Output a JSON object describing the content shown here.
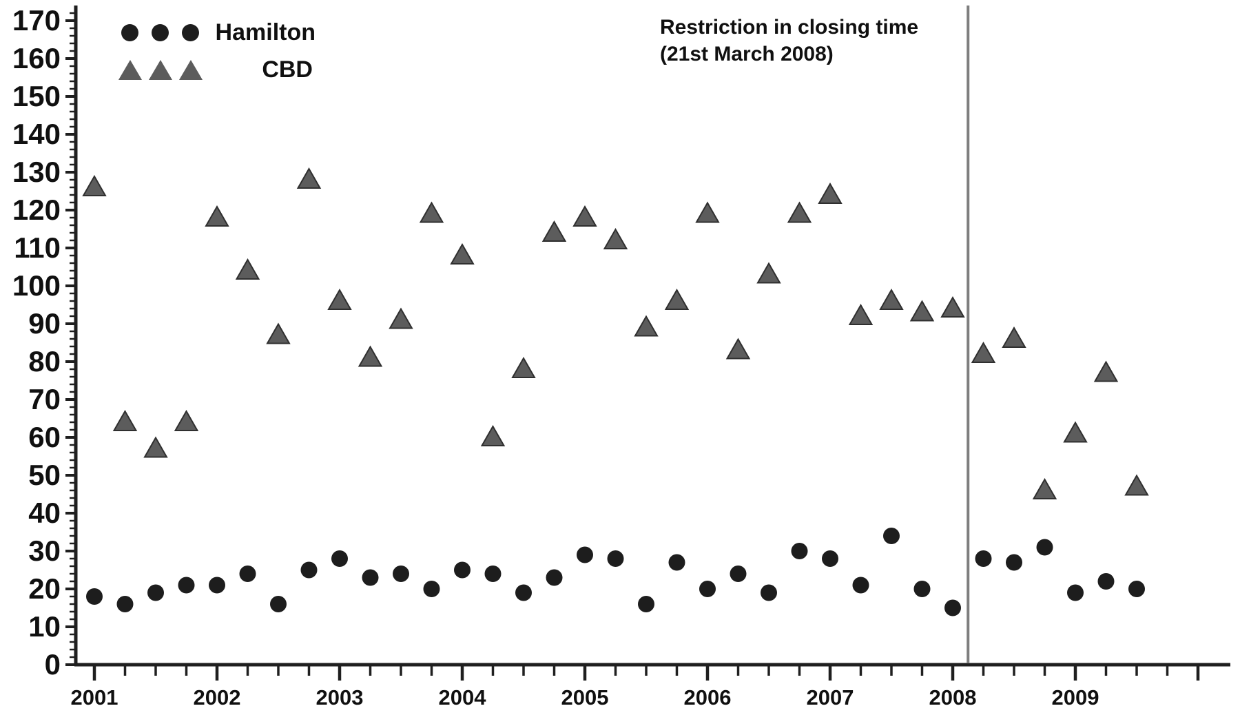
{
  "chart_data": {
    "type": "scatter",
    "title": "",
    "xlabel": "",
    "ylabel": "",
    "x_axis": {
      "year_labels": [
        2001,
        2002,
        2003,
        2004,
        2005,
        2006,
        2007,
        2008,
        2009
      ],
      "minor_tick_interval_years": 0.25,
      "tick_end": 2010.0
    },
    "y_axis": {
      "min": 0,
      "max": 170,
      "major_tick_step": 10,
      "minor_tick_step": 2,
      "tick_labels": [
        0,
        10,
        20,
        30,
        40,
        50,
        60,
        70,
        80,
        90,
        100,
        110,
        120,
        130,
        140,
        150,
        160,
        170
      ]
    },
    "grid": false,
    "legend_position": "top-left",
    "x": [
      2001,
      2001.25,
      2001.5,
      2001.75,
      2002,
      2002.25,
      2002.5,
      2002.75,
      2003,
      2003.25,
      2003.5,
      2003.75,
      2004,
      2004.25,
      2004.5,
      2004.75,
      2005,
      2005.25,
      2005.5,
      2005.75,
      2006,
      2006.25,
      2006.5,
      2006.75,
      2007,
      2007.25,
      2007.5,
      2007.75,
      2008,
      2008.25,
      2008.5,
      2008.75,
      2009,
      2009.25,
      2009.5
    ],
    "series": [
      {
        "name": "Hamilton",
        "marker": "circle",
        "color": "#1d1d1d",
        "values": [
          18,
          16,
          19,
          21,
          21,
          24,
          16,
          25,
          28,
          23,
          24,
          20,
          25,
          24,
          19,
          23,
          29,
          28,
          16,
          27,
          20,
          24,
          19,
          30,
          28,
          21,
          34,
          20,
          15,
          28,
          27,
          31,
          19,
          22,
          20
        ]
      },
      {
        "name": "CBD",
        "marker": "triangle",
        "color": "#5c5c5c",
        "stroke": "#2f2f2f",
        "values": [
          126,
          64,
          57,
          64,
          118,
          104,
          87,
          128,
          96,
          81,
          91,
          119,
          108,
          60,
          78,
          114,
          118,
          112,
          89,
          96,
          119,
          83,
          103,
          119,
          124,
          92,
          96,
          93,
          94,
          82,
          86,
          46,
          61,
          77,
          47
        ]
      }
    ],
    "legend": {
      "items": [
        {
          "label": "Hamilton"
        },
        {
          "label": "CBD"
        }
      ]
    },
    "annotation": {
      "line1": "Restriction in closing time",
      "line2": "(21st March 2008)",
      "vline_x": 2008.125
    },
    "colors": {
      "axis": "#1f1f1f",
      "text": "#101010",
      "vline": "#7e7e7e"
    }
  }
}
